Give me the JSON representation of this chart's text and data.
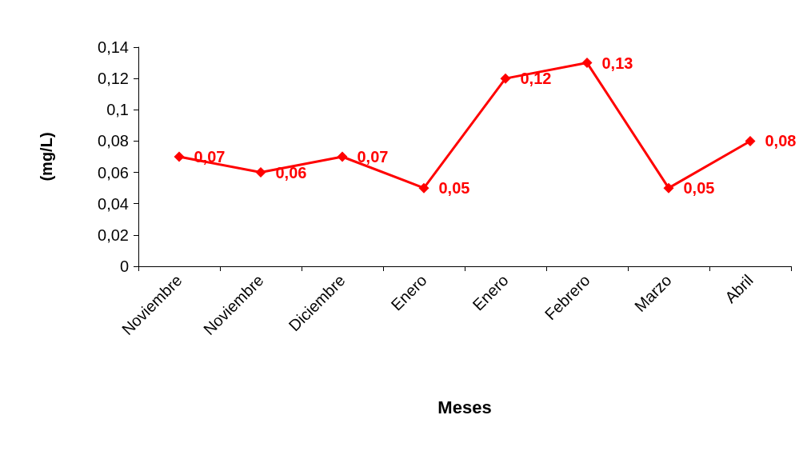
{
  "chart_data": {
    "type": "line",
    "xlabel": "Meses",
    "ylabel": "(mg/L)",
    "categories": [
      "Noviembre",
      "Noviembre",
      "Diciembre",
      "Enero",
      "Enero",
      "Febrero",
      "Marzo",
      "Abril"
    ],
    "series": [
      {
        "color": "#ff0000",
        "values": [
          0.07,
          0.06,
          0.07,
          0.05,
          0.12,
          0.13,
          0.05,
          0.08
        ],
        "value_labels": [
          "0,07",
          "0,06",
          "0,07",
          "0,05",
          "0,12",
          "0,13",
          "0,05",
          "0,08"
        ]
      }
    ],
    "ylim": [
      0,
      0.14
    ],
    "yticks": [
      {
        "value": 0,
        "label": "0"
      },
      {
        "value": 0.02,
        "label": "0,02"
      },
      {
        "value": 0.04,
        "label": "0,04"
      },
      {
        "value": 0.06,
        "label": "0,06"
      },
      {
        "value": 0.08,
        "label": "0,08"
      },
      {
        "value": 0.1,
        "label": "0,1"
      },
      {
        "value": 0.12,
        "label": "0,12"
      },
      {
        "value": 0.14,
        "label": "0,14"
      }
    ],
    "grid": false,
    "marker": "diamond",
    "line_style": "solid"
  }
}
